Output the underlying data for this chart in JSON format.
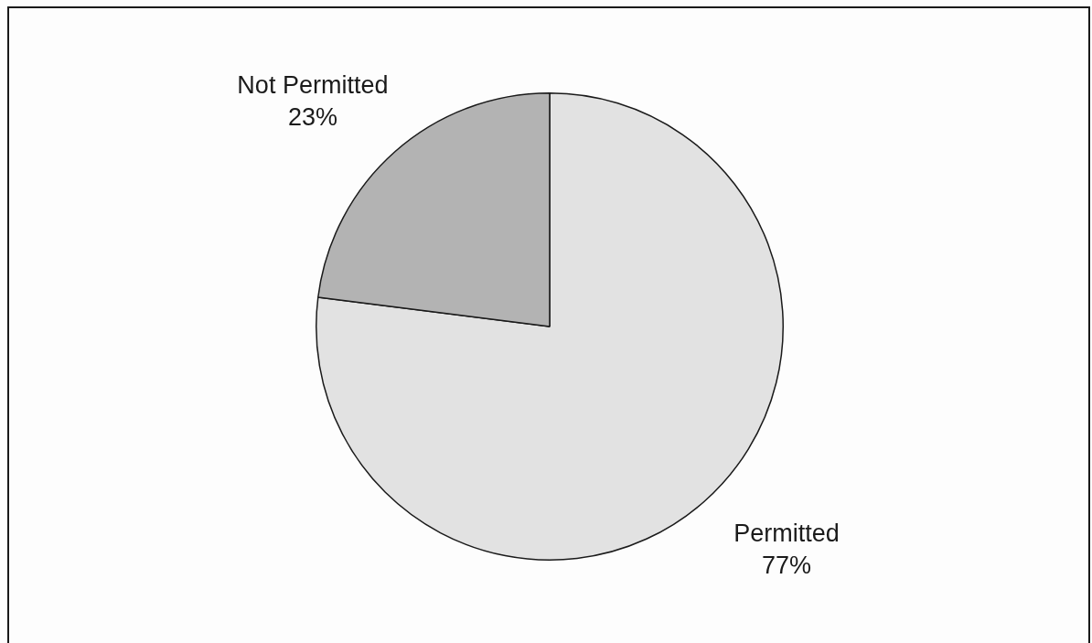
{
  "chart_data": {
    "type": "pie",
    "categories": [
      "Permitted",
      "Not Permitted"
    ],
    "values": [
      77,
      23
    ],
    "colors": [
      "#e2e2e2",
      "#b3b3b3"
    ],
    "value_labels": [
      "77%",
      "23%"
    ]
  }
}
